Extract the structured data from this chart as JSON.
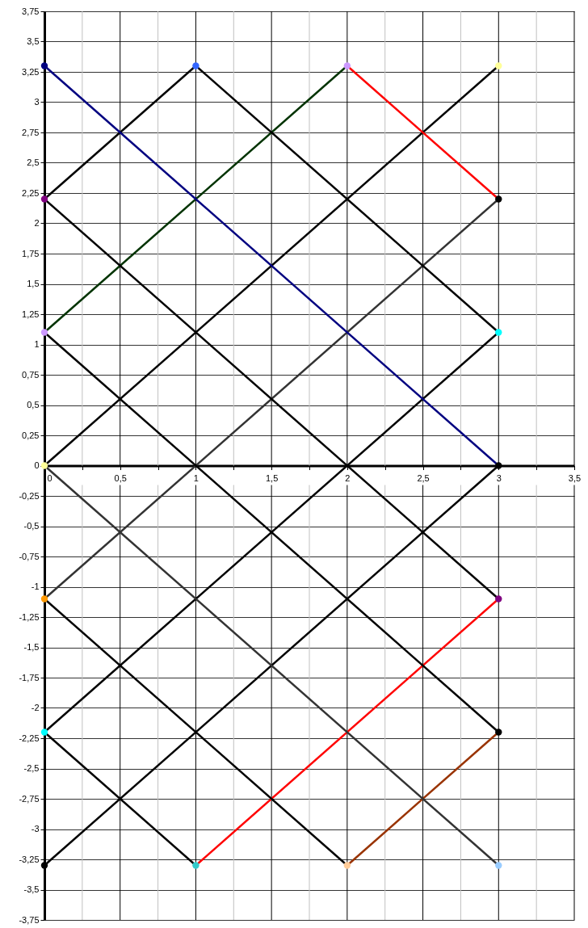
{
  "chart_data": {
    "type": "line",
    "grid": true,
    "xlim": [
      0,
      3.5
    ],
    "xticks": [
      0,
      {
        "value": 0.25,
        "label": null
      },
      {
        "value": 0.5,
        "label": "0,5"
      },
      {
        "value": 0.75,
        "label": null
      },
      1,
      {
        "value": 1.25,
        "label": null
      },
      {
        "value": 1.5,
        "label": "1,5"
      },
      {
        "value": 1.75,
        "label": null
      },
      2,
      {
        "value": 2.25,
        "label": null
      },
      {
        "value": 2.5,
        "label": "2,5"
      },
      {
        "value": 2.75,
        "label": null
      },
      3,
      {
        "value": 3.25,
        "label": null
      },
      {
        "value": 3.5,
        "label": "3,5"
      }
    ],
    "ylim": [
      -3.75,
      3.75
    ],
    "yticks": [
      {
        "value": 3.75,
        "label": "3,75"
      },
      {
        "value": 3.5,
        "label": "3,5"
      },
      {
        "value": 3.25,
        "label": "3,25"
      },
      3,
      {
        "value": 2.75,
        "label": "2,75"
      },
      {
        "value": 2.5,
        "label": "2,5"
      },
      {
        "value": 2.25,
        "label": "2,25"
      },
      2,
      {
        "value": 1.75,
        "label": "1,75"
      },
      {
        "value": 1.5,
        "label": "1,5"
      },
      {
        "value": 1.25,
        "label": "1,25"
      },
      1,
      {
        "value": 0.75,
        "label": "0,75"
      },
      {
        "value": 0.5,
        "label": "0,5"
      },
      {
        "value": 0.25,
        "label": "0,25"
      },
      0,
      {
        "value": -0.25,
        "label": "-0,25"
      },
      {
        "value": -0.5,
        "label": "-0,5"
      },
      {
        "value": -0.75,
        "label": "-0,75"
      },
      -1,
      {
        "value": -1.25,
        "label": "-1,25"
      },
      {
        "value": -1.5,
        "label": "-1,5"
      },
      {
        "value": -1.75,
        "label": "-1,75"
      },
      -2,
      {
        "value": -2.25,
        "label": "-2,25"
      },
      {
        "value": -2.5,
        "label": "-2,5"
      },
      {
        "value": -2.75,
        "label": "-2,75"
      },
      -3,
      {
        "value": -3.25,
        "label": "-3,25"
      },
      {
        "value": -3.5,
        "label": "-3,5"
      },
      {
        "value": -3.75,
        "label": "-3,75"
      }
    ],
    "series": [
      {
        "color": "#000000",
        "x": [
          0,
          1
        ],
        "values": [
          2.2,
          3.3
        ]
      },
      {
        "color": "#003300",
        "x": [
          0,
          2
        ],
        "values": [
          1.1,
          3.3
        ]
      },
      {
        "color": "#000000",
        "x": [
          0,
          3
        ],
        "values": [
          0,
          3.3
        ]
      },
      {
        "color": "#333333",
        "x": [
          0,
          3
        ],
        "values": [
          -1.1,
          2.2
        ]
      },
      {
        "color": "#000000",
        "x": [
          0,
          3
        ],
        "values": [
          -2.2,
          1.1
        ]
      },
      {
        "color": "#000000",
        "x": [
          0,
          3
        ],
        "values": [
          -3.3,
          0
        ]
      },
      {
        "color": "#ff0000",
        "x": [
          1,
          3
        ],
        "values": [
          -3.3,
          -1.1
        ]
      },
      {
        "color": "#993300",
        "x": [
          2,
          3
        ],
        "values": [
          -3.3,
          -2.2
        ]
      },
      {
        "color": "#000080",
        "x": [
          0,
          3
        ],
        "values": [
          3.3,
          0
        ]
      },
      {
        "color": "#000000",
        "x": [
          1,
          3
        ],
        "values": [
          3.3,
          1.1
        ]
      },
      {
        "color": "#ff0000",
        "x": [
          2,
          3
        ],
        "values": [
          3.3,
          2.2
        ]
      },
      {
        "color": "#000000",
        "x": [
          0,
          3
        ],
        "values": [
          2.2,
          -1.1
        ]
      },
      {
        "color": "#000000",
        "x": [
          0,
          3
        ],
        "values": [
          1.1,
          -2.2
        ]
      },
      {
        "color": "#333333",
        "x": [
          0,
          3
        ],
        "values": [
          0,
          -3.3
        ]
      },
      {
        "color": "#000000",
        "x": [
          0,
          2
        ],
        "values": [
          -1.1,
          -3.3
        ]
      },
      {
        "color": "#000000",
        "x": [
          0,
          1
        ],
        "values": [
          -2.2,
          -3.3
        ]
      },
      {
        "type": "scatter",
        "marker": "circle",
        "x": [
          0,
          1,
          2,
          3,
          0,
          3,
          0,
          3,
          0,
          3,
          0,
          3,
          0,
          3,
          0,
          1,
          2,
          3
        ],
        "values": [
          3.3,
          3.3,
          3.3,
          3.3,
          2.2,
          2.2,
          1.1,
          1.1,
          0,
          0,
          -1.1,
          -1.1,
          -2.2,
          -2.2,
          -3.3,
          -3.3,
          -3.3,
          -3.3
        ],
        "colors": [
          "#000080",
          "#3366ff",
          "#cc99ff",
          "#ffff99",
          "#800080",
          "#000000",
          "#cc99ff",
          "#00ffff",
          "#ffff99",
          "#000000",
          "#ff9900",
          "#800080",
          "#00ffff",
          "#000000",
          "#000000",
          "#33cccc",
          "#ffcc99",
          "#99ccff"
        ]
      }
    ]
  }
}
